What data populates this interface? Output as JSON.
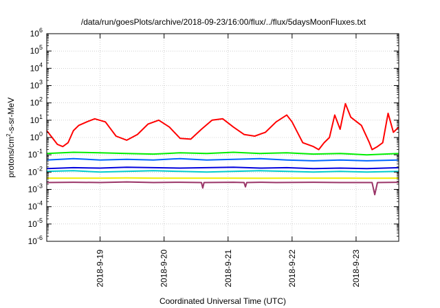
{
  "chart_data": {
    "type": "line",
    "title": "/data/run/goesPlots/archive/2018-09-23/16:00/flux/../flux/5daysMoonFluxes.txt",
    "xlabel": "Coordinated Universal Time (UTC)",
    "ylabel": {
      "pre": "protons/cm",
      "sup": "2",
      "post": "-s-sr-MeV"
    },
    "y_scale": "log",
    "ylim": [
      1e-06,
      1000000.0
    ],
    "xlim": [
      "2018-09-18 04:00",
      "2018-09-23 16:00"
    ],
    "x_ticks": [
      "2018-9-19",
      "2018-9-20",
      "2018-9-21",
      "2018-9-22",
      "2018-9-23"
    ],
    "y_ticks": [
      {
        "base": "10",
        "exp": "-6"
      },
      {
        "base": "10",
        "exp": "-5"
      },
      {
        "base": "10",
        "exp": "-4"
      },
      {
        "base": "10",
        "exp": "-3"
      },
      {
        "base": "10",
        "exp": "-2"
      },
      {
        "base": "10",
        "exp": "-1"
      },
      {
        "base": "10",
        "exp": "0"
      },
      {
        "base": "10",
        "exp": "1"
      },
      {
        "base": "10",
        "exp": "2"
      },
      {
        "base": "10",
        "exp": "3"
      },
      {
        "base": "10",
        "exp": "4"
      },
      {
        "base": "10",
        "exp": "5"
      },
      {
        "base": "10",
        "exp": "6"
      }
    ],
    "grid": true,
    "series": [
      {
        "color": "#ff0000",
        "x": [
          "2018-09-18 04:00",
          "2018-09-18 06:00",
          "2018-09-18 08:00",
          "2018-09-18 10:00",
          "2018-09-18 12:00",
          "2018-09-18 14:00",
          "2018-09-18 16:00",
          "2018-09-18 19:00",
          "2018-09-18 22:00",
          "2018-09-19 02:00",
          "2018-09-19 06:00",
          "2018-09-19 10:00",
          "2018-09-19 14:00",
          "2018-09-19 18:00",
          "2018-09-19 22:00",
          "2018-09-20 02:00",
          "2018-09-20 06:00",
          "2018-09-20 10:00",
          "2018-09-20 14:00",
          "2018-09-20 18:00",
          "2018-09-20 22:00",
          "2018-09-21 02:00",
          "2018-09-21 06:00",
          "2018-09-21 10:00",
          "2018-09-21 14:00",
          "2018-09-21 18:00",
          "2018-09-21 22:00",
          "2018-09-22 00:00",
          "2018-09-22 04:00",
          "2018-09-22 08:00",
          "2018-09-22 10:00",
          "2018-09-22 12:00",
          "2018-09-22 14:00",
          "2018-09-22 16:00",
          "2018-09-22 18:00",
          "2018-09-22 20:00",
          "2018-09-22 22:00",
          "2018-09-23 02:00",
          "2018-09-23 05:00",
          "2018-09-23 06:00",
          "2018-09-23 08:00",
          "2018-09-23 10:00",
          "2018-09-23 12:00",
          "2018-09-23 14:00",
          "2018-09-23 16:00"
        ],
        "values": [
          2.5,
          1.0,
          0.4,
          0.3,
          0.5,
          2.5,
          5.0,
          8.0,
          12,
          8.0,
          1.2,
          0.7,
          1.5,
          6.0,
          10,
          4.0,
          0.9,
          0.8,
          3.0,
          10,
          12,
          4.0,
          1.5,
          1.2,
          2.0,
          8.0,
          20,
          8.0,
          0.5,
          0.3,
          0.2,
          0.5,
          1.0,
          20,
          3.0,
          90,
          15,
          5.0,
          0.5,
          0.2,
          0.3,
          0.5,
          25,
          2.0,
          4.0
        ]
      },
      {
        "color": "#00ee00",
        "x": [
          "2018-09-18 04:00",
          "2018-09-18 14:00",
          "2018-09-19 00:00",
          "2018-09-19 10:00",
          "2018-09-19 20:00",
          "2018-09-20 06:00",
          "2018-09-20 16:00",
          "2018-09-21 02:00",
          "2018-09-21 12:00",
          "2018-09-21 22:00",
          "2018-09-22 08:00",
          "2018-09-22 18:00",
          "2018-09-23 04:00",
          "2018-09-23 16:00"
        ],
        "values": [
          0.12,
          0.14,
          0.13,
          0.12,
          0.11,
          0.13,
          0.12,
          0.14,
          0.12,
          0.13,
          0.11,
          0.12,
          0.1,
          0.12
        ]
      },
      {
        "color": "#00cccc",
        "x": [
          "2018-09-18 04:00",
          "2018-09-18 14:00",
          "2018-09-19 00:00",
          "2018-09-19 10:00",
          "2018-09-19 20:00",
          "2018-09-20 06:00",
          "2018-09-20 16:00",
          "2018-09-21 02:00",
          "2018-09-21 12:00",
          "2018-09-21 22:00",
          "2018-09-22 08:00",
          "2018-09-22 18:00",
          "2018-09-23 04:00",
          "2018-09-23 16:00"
        ],
        "values": [
          0.011,
          0.012,
          0.01,
          0.011,
          0.012,
          0.011,
          0.01,
          0.011,
          0.012,
          0.011,
          0.01,
          0.011,
          0.01,
          0.011
        ]
      },
      {
        "color": "#0066ff",
        "x": [
          "2018-09-18 04:00",
          "2018-09-18 14:00",
          "2018-09-19 00:00",
          "2018-09-19 10:00",
          "2018-09-19 20:00",
          "2018-09-20 06:00",
          "2018-09-20 16:00",
          "2018-09-21 02:00",
          "2018-09-21 12:00",
          "2018-09-21 22:00",
          "2018-09-22 08:00",
          "2018-09-22 18:00",
          "2018-09-23 04:00",
          "2018-09-23 16:00"
        ],
        "values": [
          0.05,
          0.06,
          0.05,
          0.055,
          0.05,
          0.06,
          0.05,
          0.055,
          0.06,
          0.05,
          0.045,
          0.05,
          0.045,
          0.05
        ]
      },
      {
        "color": "#0000dd",
        "x": [
          "2018-09-18 04:00",
          "2018-09-18 14:00",
          "2018-09-19 00:00",
          "2018-09-19 10:00",
          "2018-09-19 20:00",
          "2018-09-20 06:00",
          "2018-09-20 16:00",
          "2018-09-21 02:00",
          "2018-09-21 12:00",
          "2018-09-21 22:00",
          "2018-09-22 08:00",
          "2018-09-22 18:00",
          "2018-09-23 04:00",
          "2018-09-23 16:00"
        ],
        "values": [
          0.016,
          0.018,
          0.017,
          0.019,
          0.018,
          0.017,
          0.018,
          0.019,
          0.017,
          0.018,
          0.016,
          0.017,
          0.016,
          0.018
        ]
      },
      {
        "color": "#eeee00",
        "x": [
          "2018-09-18 04:00",
          "2018-09-18 14:00",
          "2018-09-19 00:00",
          "2018-09-19 10:00",
          "2018-09-19 20:00",
          "2018-09-20 06:00",
          "2018-09-20 16:00",
          "2018-09-21 02:00",
          "2018-09-21 12:00",
          "2018-09-21 22:00",
          "2018-09-22 08:00",
          "2018-09-22 18:00",
          "2018-09-23 04:00",
          "2018-09-23 16:00"
        ],
        "values": [
          0.0045,
          0.0045,
          0.0045,
          0.0046,
          0.0045,
          0.0045,
          0.0045,
          0.0045,
          0.0044,
          0.0045,
          0.0045,
          0.0045,
          0.0044,
          0.0045
        ]
      },
      {
        "color": "#993366",
        "x": [
          "2018-09-18 04:00",
          "2018-09-18 14:00",
          "2018-09-19 00:00",
          "2018-09-19 10:00",
          "2018-09-19 20:00",
          "2018-09-20 06:00",
          "2018-09-20 14:00",
          "2018-09-20 14:30",
          "2018-09-20 15:00",
          "2018-09-21 02:00",
          "2018-09-21 06:00",
          "2018-09-21 06:30",
          "2018-09-21 07:00",
          "2018-09-21 12:00",
          "2018-09-21 18:00",
          "2018-09-22 08:00",
          "2018-09-22 18:00",
          "2018-09-23 06:00",
          "2018-09-23 07:00",
          "2018-09-23 08:00",
          "2018-09-23 16:00"
        ],
        "values": [
          0.0025,
          0.0026,
          0.0025,
          0.0027,
          0.0025,
          0.0026,
          0.0025,
          0.0012,
          0.0025,
          0.0026,
          0.0025,
          0.0014,
          0.0025,
          0.0026,
          0.0025,
          0.0026,
          0.0025,
          0.0025,
          0.0005,
          0.0025,
          0.0026
        ]
      }
    ]
  }
}
